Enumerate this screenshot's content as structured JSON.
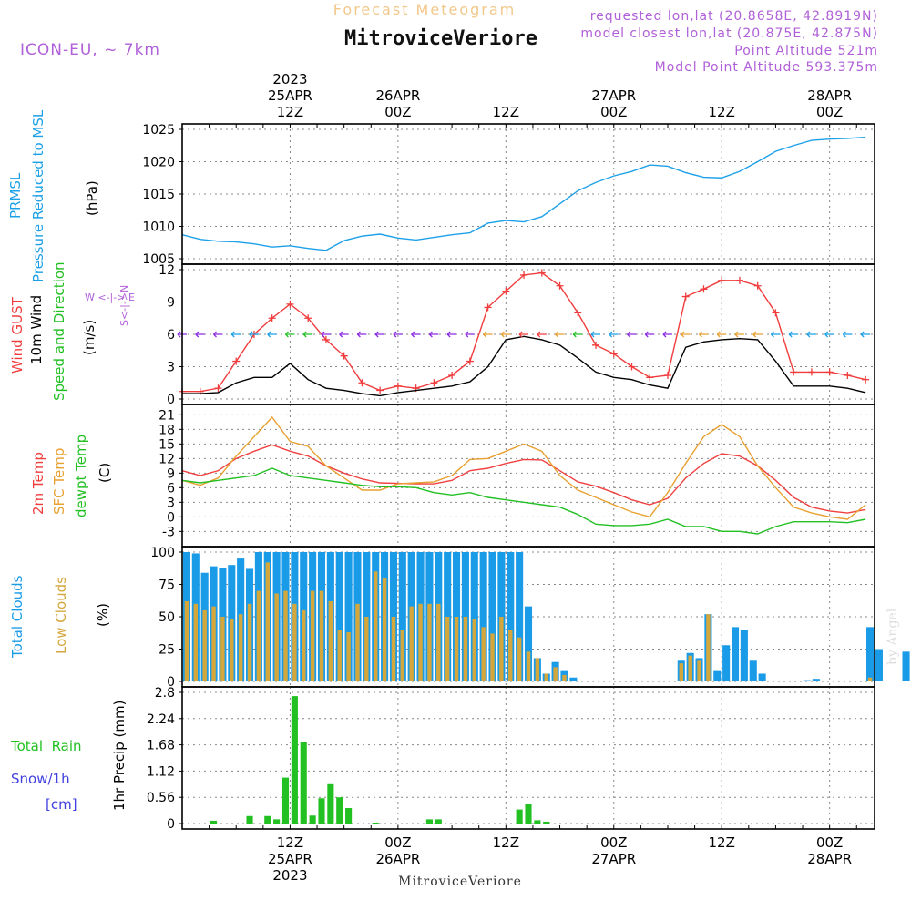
{
  "header": {
    "subtitle": "Forecast Meteogram",
    "title": "MitroviceVeriore",
    "model": "ICON-EU, ~ 7km",
    "requested": "requested lon,lat (20.8658E, 42.8919N)",
    "closest": "model closest lon,lat (20.875E, 42.875N)",
    "point_alt": "Point Altitude 521m",
    "model_alt": "Model Point Altitude 593.375m",
    "footer_location": "MitroviceVeriore",
    "watermark": "by Angel"
  },
  "colors": {
    "pressure": "#1ca0e8",
    "gust": "#f03c3c",
    "wind": "#000000",
    "temp2m": "#f04040",
    "sfc": "#e8a030",
    "dewpt": "#22c022",
    "total_clouds": "#1a9be8",
    "low_clouds": "#d4a73c",
    "rain": "#22c022",
    "purple": "#b060d8",
    "snow": "#4040e0"
  },
  "time_axis": {
    "top_labels": [
      {
        "t": 12,
        "lines": [
          "2023",
          "25APR",
          "12Z"
        ]
      },
      {
        "t": 24,
        "lines": [
          "26APR",
          "00Z"
        ]
      },
      {
        "t": 36,
        "lines": [
          "12Z"
        ]
      },
      {
        "t": 48,
        "lines": [
          "27APR",
          "00Z"
        ]
      },
      {
        "t": 60,
        "lines": [
          "12Z"
        ]
      },
      {
        "t": 72,
        "lines": [
          "28APR",
          "00Z"
        ]
      }
    ],
    "bottom_labels": [
      {
        "t": 12,
        "lines": [
          "12Z",
          "25APR",
          "2023"
        ]
      },
      {
        "t": 24,
        "lines": [
          "00Z",
          "26APR"
        ]
      },
      {
        "t": 36,
        "lines": [
          "12Z"
        ]
      },
      {
        "t": 48,
        "lines": [
          "00Z",
          "27APR"
        ]
      },
      {
        "t": 60,
        "lines": [
          "12Z"
        ]
      },
      {
        "t": 72,
        "lines": [
          "00Z",
          "28APR"
        ]
      }
    ]
  },
  "panel_labels": {
    "pressure": {
      "l1": "PRMSL",
      "l2": "Pressure Reduced to MSL",
      "unit": "(hPa)"
    },
    "wind": {
      "gust": "Wind GUST",
      "wind10m": "10m Wind",
      "dir": "Speed and Direction",
      "unit": "(m/s)",
      "compass_ns": "S<-|->N",
      "compass_we": "W <-|-> E"
    },
    "temp": {
      "t2m": "2m Temp",
      "sfc": "SFC Temp",
      "dew": "dewpt Temp",
      "unit": "(C)"
    },
    "clouds": {
      "total": "Total Clouds",
      "low": "Low Clouds",
      "unit": "(%)"
    },
    "precip": {
      "rain": "Total  Rain",
      "snow": "Snow/1h",
      "snow_unit": "[cm]",
      "unit": "1hr Precip (mm)"
    }
  },
  "chart_data": [
    {
      "type": "line",
      "title": "PRMSL Pressure Reduced to MSL",
      "ylabel": "(hPa)",
      "ylim": [
        1005,
        1025
      ],
      "yticks": [
        1005,
        1010,
        1015,
        1020,
        1025
      ],
      "x": [
        0,
        2,
        4,
        6,
        8,
        10,
        12,
        14,
        16,
        18,
        20,
        22,
        24,
        26,
        28,
        30,
        32,
        34,
        36,
        38,
        40,
        42,
        44,
        46,
        48,
        50,
        52,
        54,
        56,
        58,
        60,
        62,
        64,
        66,
        68,
        70,
        72,
        74,
        76
      ],
      "series": [
        {
          "name": "PRMSL",
          "values": [
            1008.7,
            1008,
            1007.7,
            1007.6,
            1007.3,
            1006.8,
            1007,
            1006.6,
            1006.3,
            1007.8,
            1008.5,
            1008.8,
            1008.2,
            1007.9,
            1008.3,
            1008.7,
            1009,
            1010.5,
            1010.9,
            1010.7,
            1011.5,
            1013.5,
            1015.5,
            1016.8,
            1017.8,
            1018.5,
            1019.5,
            1019.3,
            1018.3,
            1017.6,
            1017.5,
            1018.5,
            1020,
            1021.6,
            1022.5,
            1023.3,
            1023.5,
            1023.6,
            1023.8
          ]
        }
      ]
    },
    {
      "type": "line",
      "title": "Wind GUST / 10m Wind Speed and Direction",
      "ylabel": "(m/s)",
      "ylim": [
        0,
        12
      ],
      "yticks": [
        0,
        3,
        6,
        9,
        12
      ],
      "x": [
        0,
        2,
        4,
        6,
        8,
        10,
        12,
        14,
        16,
        18,
        20,
        22,
        24,
        26,
        28,
        30,
        32,
        34,
        36,
        38,
        40,
        42,
        44,
        46,
        48,
        50,
        52,
        54,
        56,
        58,
        60,
        62,
        64,
        66,
        68,
        70,
        72,
        74,
        76
      ],
      "series": [
        {
          "name": "Wind GUST",
          "values": [
            0.7,
            0.7,
            1,
            3.5,
            6,
            7.5,
            8.8,
            7.5,
            5.5,
            4,
            1.5,
            0.8,
            1.2,
            1,
            1.5,
            2.2,
            3.5,
            8.5,
            10,
            11.5,
            11.7,
            10.5,
            8,
            5,
            4.2,
            3,
            2,
            2.2,
            9.5,
            10.2,
            11,
            11,
            10.5,
            8,
            2.5,
            2.5,
            2.5,
            2.2,
            1.8
          ]
        },
        {
          "name": "10m Wind",
          "values": [
            0.5,
            0.5,
            0.6,
            1.5,
            2,
            2,
            3.3,
            1.8,
            1,
            0.8,
            0.5,
            0.3,
            0.6,
            0.8,
            1,
            1.2,
            1.6,
            3,
            5.5,
            5.8,
            5.5,
            5,
            3.8,
            2.5,
            2,
            1.8,
            1.3,
            1,
            4.8,
            5.3,
            5.5,
            5.6,
            5.5,
            3.5,
            1.2,
            1.2,
            1.2,
            1,
            0.6
          ]
        }
      ],
      "direction_markers": {
        "y": 6,
        "colors": [
          "#8a2be2",
          "#8a2be2",
          "#8a2be2",
          "#1ca0e8",
          "#1ca0e8",
          "#1ca0e8",
          "#22c022",
          "#22c022",
          "#8a2be2",
          "#8a2be2",
          "#8a2be2",
          "#8a2be2",
          "#8a2be2",
          "#8a2be2",
          "#8a2be2",
          "#8a2be2",
          "#8a2be2",
          "#e8a030",
          "#e8a030",
          "#f03c3c",
          "#f03c3c",
          "#e8a030",
          "#22c022",
          "#1ca0e8",
          "#1ca0e8",
          "#8a2be2",
          "#8a2be2",
          "#8a2be2",
          "#e8a030",
          "#e8a030",
          "#e8a030",
          "#e8a030",
          "#e8a030",
          "#1ca0e8",
          "#1ca0e8",
          "#1ca0e8",
          "#1ca0e8",
          "#1ca0e8",
          "#1ca0e8"
        ]
      }
    },
    {
      "type": "line",
      "title": "2m Temp / SFC Temp / dewpt Temp",
      "ylabel": "(C)",
      "ylim": [
        -5,
        22
      ],
      "yticks": [
        -3,
        0,
        3,
        6,
        9,
        12,
        15,
        18,
        21
      ],
      "x": [
        0,
        2,
        4,
        6,
        8,
        10,
        12,
        14,
        16,
        18,
        20,
        22,
        24,
        26,
        28,
        30,
        32,
        34,
        36,
        38,
        40,
        42,
        44,
        46,
        48,
        50,
        52,
        54,
        56,
        58,
        60,
        62,
        64,
        66,
        68,
        70,
        72,
        74,
        76
      ],
      "series": [
        {
          "name": "2m Temp",
          "values": [
            9.5,
            8.5,
            9.5,
            12,
            13.5,
            14.8,
            13.5,
            12.5,
            10.5,
            9,
            7.8,
            7,
            6.9,
            6.8,
            6.8,
            7.5,
            9.5,
            10,
            11,
            11.8,
            11.7,
            9.5,
            7.2,
            6.3,
            5,
            3.5,
            2.5,
            3.8,
            8,
            11,
            13,
            12.5,
            10.5,
            7.5,
            4,
            2,
            1.2,
            0.8,
            1.5
          ]
        },
        {
          "name": "SFC Temp",
          "values": [
            7.5,
            6.5,
            8,
            12.5,
            16.5,
            20.5,
            15.5,
            14.5,
            10.5,
            8,
            5.5,
            5.5,
            6.8,
            7,
            7.2,
            8.5,
            11.8,
            12,
            13.5,
            15,
            13.5,
            8.5,
            5.5,
            4,
            2.5,
            1,
            0,
            5,
            11,
            16.5,
            19,
            16.5,
            10.5,
            6,
            2,
            0.8,
            0,
            -0.5,
            2.5
          ]
        },
        {
          "name": "dewpt Temp",
          "values": [
            7.5,
            7,
            7.5,
            8,
            8.5,
            10,
            8.5,
            8,
            7.5,
            7,
            6.5,
            6.2,
            6.2,
            6,
            5,
            4.5,
            5,
            4,
            3.5,
            3,
            2.5,
            2,
            0.5,
            -1.5,
            -1.8,
            -1.8,
            -1.5,
            -0.5,
            -2,
            -2,
            -3,
            -3,
            -3.5,
            -2,
            -1,
            -1,
            -1,
            -1.2,
            -0.5
          ]
        }
      ]
    },
    {
      "type": "bar",
      "title": "Total Clouds / Low Clouds",
      "ylabel": "(%)",
      "ylim": [
        0,
        100
      ],
      "yticks": [
        0,
        25,
        50,
        75,
        100
      ],
      "x_start": 0,
      "x_step": 1,
      "series": [
        {
          "name": "Total Clouds",
          "values": [
            100,
            99,
            84,
            89,
            88,
            90,
            95,
            87,
            100,
            100,
            100,
            100,
            100,
            100,
            100,
            100,
            100,
            100,
            100,
            100,
            100,
            100,
            100,
            100,
            100,
            100,
            100,
            100,
            100,
            100,
            100,
            100,
            100,
            100,
            100,
            100,
            100,
            100,
            58,
            18,
            6,
            15,
            8,
            3,
            0,
            0,
            0,
            0,
            0,
            0,
            0,
            0,
            0,
            0,
            0,
            16,
            22,
            18,
            52,
            8,
            28,
            42,
            40,
            16,
            6,
            0,
            0,
            0,
            0,
            1,
            2,
            0,
            0,
            0,
            0,
            0,
            42,
            25,
            0,
            0,
            23
          ]
        },
        {
          "name": "Low Clouds",
          "values": [
            62,
            60,
            55,
            58,
            50,
            48,
            52,
            60,
            70,
            92,
            68,
            70,
            60,
            55,
            70,
            70,
            62,
            40,
            38,
            60,
            50,
            85,
            80,
            50,
            40,
            58,
            60,
            60,
            60,
            50,
            50,
            50,
            48,
            42,
            37,
            50,
            40,
            34,
            23,
            18,
            6,
            11,
            5,
            0,
            0,
            0,
            0,
            0,
            0,
            0,
            0,
            0,
            0,
            0,
            0,
            14,
            20,
            16,
            52,
            0,
            0,
            0,
            0,
            0,
            0,
            0,
            0,
            0,
            0,
            0,
            0,
            0,
            0,
            0,
            0,
            0,
            3,
            0,
            0,
            0,
            0
          ]
        }
      ]
    },
    {
      "type": "bar",
      "title": "1hr Precip",
      "ylabel": "1hr Precip (mm)",
      "ylim": [
        0,
        2.8
      ],
      "yticks": [
        0,
        0.56,
        1.12,
        1.68,
        2.24,
        2.8
      ],
      "x_start": 0,
      "x_step": 1,
      "series": [
        {
          "name": "Total Rain",
          "values": [
            0,
            0,
            0,
            0.06,
            0,
            0,
            0,
            0.16,
            0,
            0.16,
            0.09,
            0.98,
            2.72,
            1.75,
            0.17,
            0.54,
            0.84,
            0.56,
            0.33,
            0,
            0,
            0.02,
            0,
            0,
            0,
            0,
            0,
            0.09,
            0.09,
            0,
            0,
            0,
            0,
            0,
            0,
            0,
            0,
            0.3,
            0.41,
            0.07,
            0.04,
            0,
            0,
            0,
            0,
            0,
            0,
            0,
            0,
            0,
            0,
            0,
            0,
            0,
            0,
            0,
            0,
            0,
            0,
            0,
            0,
            0,
            0,
            0,
            0,
            0,
            0,
            0,
            0,
            0,
            0,
            0,
            0,
            0,
            0,
            0,
            0
          ]
        }
      ]
    }
  ]
}
